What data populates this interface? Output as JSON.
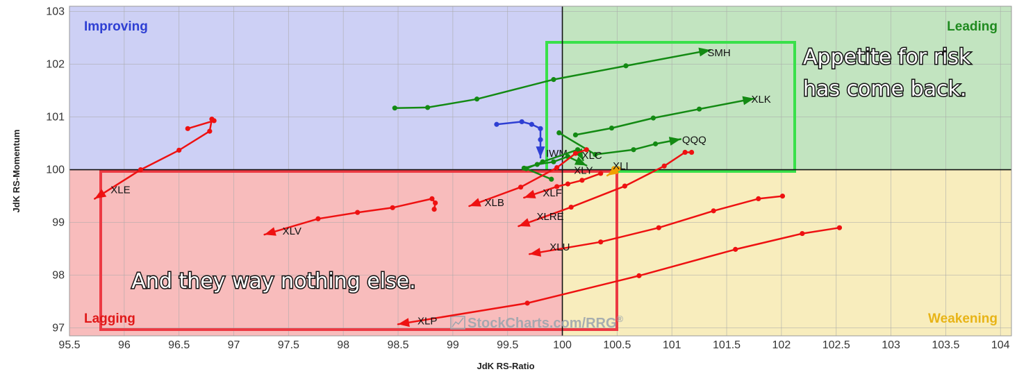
{
  "chart_data": {
    "type": "scatter",
    "xlabel": "JdK RS-Ratio",
    "ylabel": "JdK RS-Momentum",
    "xlim": [
      95.5,
      104.1
    ],
    "ylim": [
      96.85,
      103.1
    ],
    "x_ticks": [
      95.5,
      96,
      96.5,
      97,
      97.5,
      98,
      98.5,
      99,
      99.5,
      100,
      100.5,
      101,
      101.5,
      102,
      102.5,
      103,
      103.5,
      104
    ],
    "x_tick_labels": [
      "95.5",
      "96",
      "96.5",
      "97",
      "97.5",
      "98",
      "98.5",
      "99",
      "99.5",
      "100",
      "100.5",
      "101",
      "101.5",
      "102",
      "102.5",
      "103",
      "103.5",
      "104"
    ],
    "y_ticks": [
      97,
      98,
      99,
      100,
      101,
      102,
      103
    ],
    "y_tick_labels": [
      "97",
      "98",
      "99",
      "100",
      "101",
      "102",
      "103"
    ],
    "grid": true,
    "center": [
      100,
      100
    ],
    "quadrants": [
      {
        "name": "Improving",
        "position": "top-left",
        "fill": "#cdd0f5",
        "text_color": "#2e3fd3"
      },
      {
        "name": "Leading",
        "position": "top-right",
        "fill": "#c2e4c0",
        "text_color": "#1f8a1f"
      },
      {
        "name": "Lagging",
        "position": "bottom-left",
        "fill": "#f8bcbc",
        "text_color": "#e01818"
      },
      {
        "name": "Weakening",
        "position": "bottom-right",
        "fill": "#f8edbd",
        "text_color": "#e8b417"
      }
    ],
    "series": [
      {
        "name": "SMH",
        "color": "#138a13",
        "points": [
          [
            98.47,
            101.17
          ],
          [
            98.77,
            101.18
          ],
          [
            99.22,
            101.34
          ],
          [
            99.92,
            101.71
          ],
          [
            100.58,
            101.97
          ],
          [
            101.35,
            102.27
          ]
        ]
      },
      {
        "name": "XLK",
        "color": "#138a13",
        "points": [
          [
            100.12,
            100.66
          ],
          [
            100.45,
            100.79
          ],
          [
            100.83,
            100.98
          ],
          [
            101.25,
            101.15
          ],
          [
            101.75,
            101.35
          ]
        ]
      },
      {
        "name": "QQQ",
        "color": "#138a13",
        "points": [
          [
            99.97,
            100.7
          ],
          [
            100.3,
            100.29
          ],
          [
            100.65,
            100.38
          ],
          [
            100.85,
            100.49
          ],
          [
            101.08,
            100.58
          ]
        ]
      },
      {
        "name": "IWM",
        "color": "#2e3fd3",
        "points": [
          [
            99.4,
            100.86
          ],
          [
            99.63,
            100.91
          ],
          [
            99.72,
            100.86
          ],
          [
            99.8,
            100.78
          ],
          [
            99.8,
            100.57
          ],
          [
            99.8,
            100.23
          ]
        ]
      },
      {
        "name": "XLC",
        "color": "#138a13",
        "points": [
          [
            99.9,
            99.82
          ],
          [
            99.67,
            100.02
          ],
          [
            99.82,
            100.15
          ],
          [
            100.14,
            100.38
          ],
          [
            100.19,
            100.18
          ]
        ]
      },
      {
        "name": "XLY",
        "color": "#138a13",
        "points": [
          [
            99.65,
            100.03
          ],
          [
            99.77,
            100.1
          ],
          [
            99.92,
            100.15
          ],
          [
            100.05,
            100.25
          ],
          [
            100.22,
            100.08
          ]
        ]
      },
      {
        "name": "XLI",
        "color": "#f0a000",
        "points": [
          [
            100.47,
            100.02
          ],
          [
            100.51,
            100.02
          ],
          [
            100.41,
            99.89
          ]
        ]
      },
      {
        "name": "XLE",
        "color": "#ee1111",
        "points": [
          [
            96.58,
            100.78
          ],
          [
            96.82,
            100.93
          ],
          [
            96.8,
            100.96
          ],
          [
            96.78,
            100.73
          ],
          [
            96.5,
            100.37
          ],
          [
            96.15,
            100.0
          ],
          [
            95.73,
            99.45
          ]
        ]
      },
      {
        "name": "XLB",
        "color": "#ee1111",
        "points": [
          [
            100.22,
            100.38
          ],
          [
            100.12,
            100.31
          ],
          [
            99.95,
            100.04
          ],
          [
            99.62,
            99.67
          ],
          [
            99.15,
            99.31
          ]
        ]
      },
      {
        "name": "XLF",
        "color": "#ee1111",
        "points": [
          [
            100.35,
            99.93
          ],
          [
            100.18,
            99.8
          ],
          [
            100.05,
            99.73
          ],
          [
            99.95,
            99.68
          ],
          [
            99.65,
            99.47
          ]
        ]
      },
      {
        "name": "XLRE",
        "color": "#ee1111",
        "points": [
          [
            101.18,
            100.33
          ],
          [
            101.12,
            100.33
          ],
          [
            100.93,
            100.07
          ],
          [
            100.57,
            99.69
          ],
          [
            100.08,
            99.29
          ],
          [
            99.6,
            98.93
          ]
        ]
      },
      {
        "name": "XLV",
        "color": "#ee1111",
        "points": [
          [
            98.83,
            99.25
          ],
          [
            98.84,
            99.37
          ],
          [
            98.81,
            99.45
          ],
          [
            98.45,
            99.28
          ],
          [
            98.13,
            99.19
          ],
          [
            97.77,
            99.07
          ],
          [
            97.28,
            98.77
          ]
        ]
      },
      {
        "name": "XLU",
        "color": "#ee1111",
        "points": [
          [
            102.01,
            99.5
          ],
          [
            101.79,
            99.45
          ],
          [
            101.38,
            99.22
          ],
          [
            100.88,
            98.9
          ],
          [
            100.35,
            98.63
          ],
          [
            99.7,
            98.4
          ]
        ]
      },
      {
        "name": "XLP",
        "color": "#ee1111",
        "points": [
          [
            102.53,
            98.9
          ],
          [
            102.19,
            98.79
          ],
          [
            101.58,
            98.49
          ],
          [
            100.7,
            97.99
          ],
          [
            99.68,
            97.47
          ],
          [
            98.5,
            97.07
          ]
        ]
      }
    ],
    "annotations": [
      {
        "id": "risk",
        "lines": [
          "Appetite for risk",
          "has come back."
        ]
      },
      {
        "id": "nothing",
        "lines": [
          "And they way nothing else."
        ]
      }
    ],
    "highlight_boxes": [
      {
        "id": "green",
        "color": "#39e04a"
      },
      {
        "id": "red",
        "color": "#ec3a43"
      }
    ],
    "watermark": {
      "brand": "StockCharts.com",
      "suffix": "RRG",
      "mark": "®"
    }
  }
}
